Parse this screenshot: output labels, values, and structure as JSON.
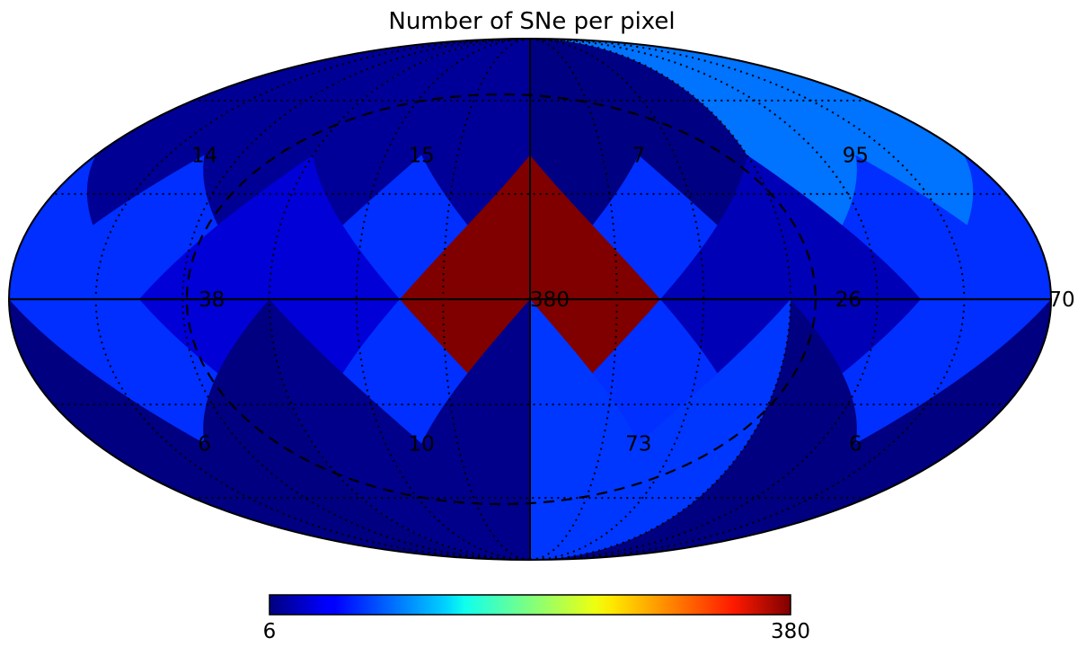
{
  "chart_data": {
    "type": "heatmap",
    "title": "Number of SNe per pixel",
    "projection": "mollweide",
    "pixelization": "HEALPix Nside=1",
    "colormap": "jet",
    "value_range": [
      6,
      380
    ],
    "grid": true,
    "pixels": [
      {
        "id": "north-1",
        "value": 14
      },
      {
        "id": "north-2",
        "value": 15
      },
      {
        "id": "north-3",
        "value": 7
      },
      {
        "id": "north-4",
        "value": 95
      },
      {
        "id": "equator-1",
        "value": 38
      },
      {
        "id": "equator-2",
        "value": 380
      },
      {
        "id": "equator-3",
        "value": 26
      },
      {
        "id": "equator-4",
        "value": 70
      },
      {
        "id": "south-1",
        "value": 6
      },
      {
        "id": "south-2",
        "value": 10
      },
      {
        "id": "south-3",
        "value": 73
      },
      {
        "id": "south-4",
        "value": 6
      }
    ],
    "colorbar": {
      "min_label": "6",
      "max_label": "380",
      "placement": "bottom"
    }
  },
  "colors": {
    "background": "#ffffff",
    "outline": "#000000",
    "grid": "#000000"
  }
}
